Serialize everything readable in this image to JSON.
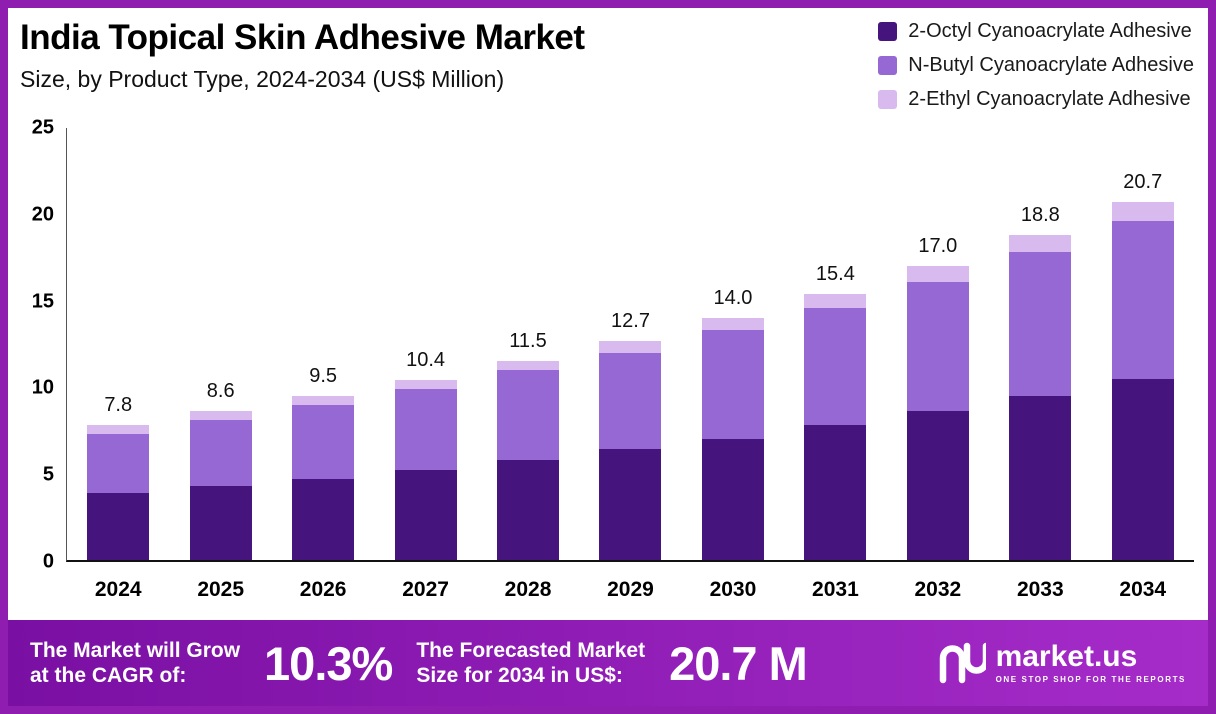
{
  "chart_data": {
    "type": "bar",
    "stacked": true,
    "title": "India Topical Skin Adhesive Market",
    "subtitle": "Size, by Product Type, 2024-2034 (US$ Million)",
    "categories": [
      "2024",
      "2025",
      "2026",
      "2027",
      "2028",
      "2029",
      "2030",
      "2031",
      "2032",
      "2033",
      "2034"
    ],
    "totals": [
      "7.8",
      "8.6",
      "9.5",
      "10.4",
      "11.5",
      "12.7",
      "14.0",
      "15.4",
      "17.0",
      "18.8",
      "20.7"
    ],
    "series": [
      {
        "name": "2-Octyl Cyanoacrylate Adhesive",
        "color": "#45157d",
        "values": [
          3.9,
          4.3,
          4.7,
          5.2,
          5.8,
          6.4,
          7.0,
          7.8,
          8.6,
          9.5,
          10.5
        ]
      },
      {
        "name": "N-Butyl Cyanoacrylate Adhesive",
        "color": "#9668d4",
        "values": [
          3.4,
          3.8,
          4.3,
          4.7,
          5.2,
          5.6,
          6.3,
          6.8,
          7.5,
          8.3,
          9.1
        ]
      },
      {
        "name": "2-Ethyl Cyanoacrylate Adhesive",
        "color": "#d9baee",
        "values": [
          0.5,
          0.5,
          0.5,
          0.5,
          0.5,
          0.7,
          0.7,
          0.8,
          0.9,
          1.0,
          1.1
        ]
      }
    ],
    "y_ticks": [
      "0",
      "5",
      "10",
      "15",
      "20",
      "25"
    ],
    "ylim": [
      0,
      25
    ],
    "legend_position": "top-right",
    "grid": false
  },
  "banner": {
    "cagr_line1": "The Market will Grow",
    "cagr_line2": "at the CAGR of:",
    "cagr_value": "10.3%",
    "forecast_line1": "The Forecasted Market",
    "forecast_line2": "Size for 2034 in US$:",
    "forecast_value": "20.7 M",
    "brand": "market.us",
    "brand_tagline": "ONE STOP SHOP FOR THE REPORTS"
  },
  "colors": {
    "page_border": "#8e1db0",
    "banner_gradient_start": "#7a0fa3",
    "banner_gradient_end": "#a62cc9",
    "axis": "#111111",
    "text": "#111111"
  }
}
